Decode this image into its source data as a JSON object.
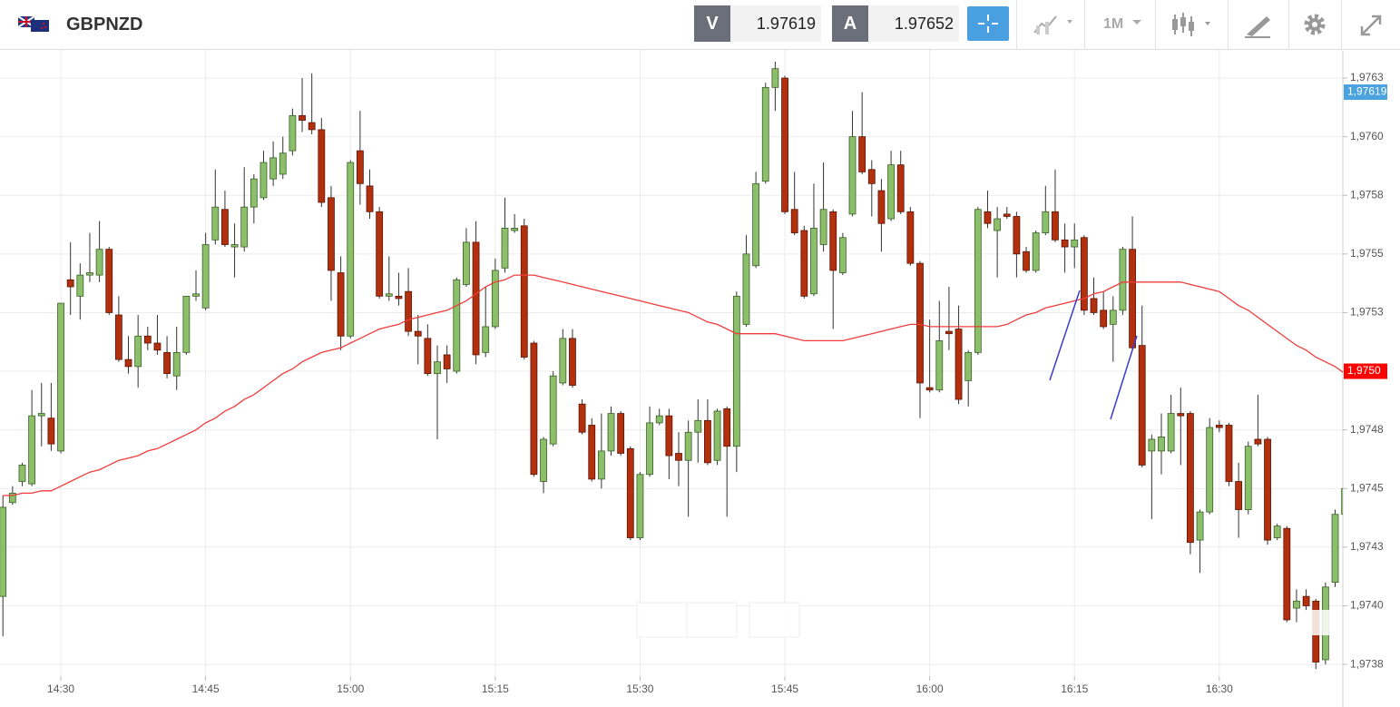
{
  "header": {
    "symbol": "GBPNZD",
    "bid_label": "V",
    "bid": 1.97619,
    "ask_label": "A",
    "ask": 1.97652,
    "timeframe": "1M"
  },
  "chart_data": {
    "type": "candlestick",
    "categories": [
      null,
      null,
      null,
      null,
      null,
      null,
      "14:30",
      null,
      null,
      null,
      null,
      null,
      null,
      null,
      null,
      null,
      null,
      null,
      null,
      null,
      null,
      "14:45",
      null,
      null,
      null,
      null,
      null,
      null,
      null,
      null,
      null,
      null,
      null,
      null,
      null,
      null,
      "15:00",
      null,
      null,
      null,
      null,
      null,
      null,
      null,
      null,
      null,
      null,
      null,
      null,
      null,
      null,
      "15:15",
      null,
      null,
      null,
      null,
      null,
      null,
      null,
      null,
      null,
      null,
      null,
      null,
      null,
      null,
      "15:30",
      null,
      null,
      null,
      null,
      null,
      null,
      null,
      null,
      null,
      null,
      null,
      null,
      null,
      null,
      "15:45",
      null,
      null,
      null,
      null,
      null,
      null,
      null,
      null,
      null,
      null,
      null,
      null,
      null,
      null,
      "16:00",
      null,
      null,
      null,
      null,
      null,
      null,
      null,
      null,
      null,
      null,
      null,
      null,
      null,
      null,
      "16:15",
      null,
      null,
      null,
      null,
      null,
      null,
      null,
      null,
      null,
      null,
      null,
      null,
      null,
      null,
      "16:30",
      null,
      null,
      null,
      null,
      null,
      null,
      null,
      null,
      null,
      null,
      null,
      null,
      null
    ],
    "open": [
      1.97404,
      1.97444,
      1.97453,
      1.97452,
      1.97481,
      1.9748,
      1.97466,
      1.97539,
      1.97532,
      1.97541,
      1.97541,
      1.97552,
      1.97524,
      1.97505,
      1.97502,
      1.97515,
      1.97512,
      1.97508,
      1.97498,
      1.97508,
      1.97532,
      1.97527,
      1.97556,
      1.97569,
      1.97553,
      1.97553,
      1.9757,
      1.97574,
      1.97582,
      1.97584,
      1.97594,
      1.97609,
      1.97606,
      1.97603,
      1.97574,
      1.97542,
      1.97515,
      1.97594,
      1.97579,
      1.97568,
      1.97532,
      1.97532,
      1.97534,
      1.97517,
      1.97514,
      1.97499,
      1.97507,
      1.975,
      1.97537,
      1.97555,
      1.97508,
      1.97519,
      1.97544,
      1.9756,
      1.97562,
      1.97512,
      1.97453,
      1.97469,
      1.97495,
      1.97514,
      1.97486,
      1.97477,
      1.97454,
      1.97466,
      1.97482,
      1.97467,
      1.97429,
      1.97456,
      1.97478,
      1.97481,
      1.97465,
      1.97462,
      1.97474,
      1.97479,
      1.97462,
      1.97484,
      1.97468,
      1.9752,
      1.97545,
      1.97581,
      1.97621,
      1.97625,
      1.97569,
      1.9756,
      1.97533,
      1.97554,
      1.97568,
      1.97542,
      1.97567,
      1.976,
      1.97586,
      1.97577,
      1.97565,
      1.97588,
      1.97568,
      1.97546,
      1.97493,
      1.97492,
      1.97517,
      1.97518,
      1.97496,
      1.97508,
      1.97568,
      1.9756,
      1.97567,
      1.97566,
      1.97551,
      1.97543,
      1.97559,
      1.97568,
      1.97556,
      1.97553,
      1.97557,
      1.97531,
      1.97526,
      1.9752,
      1.97526,
      1.97552,
      1.97511,
      1.97466,
      1.97466,
      1.97466,
      1.97482,
      1.97482,
      1.97428,
      1.9744,
      1.97477,
      1.97477,
      1.97453,
      1.97441,
      1.97471,
      1.97471,
      1.97429,
      1.97433,
      1.97399,
      1.97404,
      1.97402,
      1.97377,
      1.9741,
      1.97439
    ],
    "high": [
      1.97447,
      1.97451,
      1.97461,
      1.97492,
      1.97495,
      1.97495,
      1.97529,
      1.97555,
      1.97546,
      1.97559,
      1.97564,
      1.97553,
      1.97532,
      1.97515,
      1.97524,
      1.97519,
      1.97524,
      1.97515,
      1.97519,
      1.97532,
      1.97543,
      1.97559,
      1.97586,
      1.97577,
      1.97563,
      1.97587,
      1.97584,
      1.97594,
      1.97598,
      1.976,
      1.97612,
      1.97625,
      1.97627,
      1.97608,
      1.97579,
      1.97549,
      1.9759,
      1.97611,
      1.97586,
      1.9757,
      1.97549,
      1.97542,
      1.97544,
      1.97524,
      1.9752,
      1.97511,
      1.97511,
      1.9754,
      1.97561,
      1.97564,
      1.97536,
      1.97548,
      1.97574,
      1.97567,
      1.97565,
      1.97513,
      1.97472,
      1.975,
      1.97518,
      1.97518,
      1.97488,
      1.9748,
      1.97482,
      1.97485,
      1.97483,
      1.97468,
      1.97457,
      1.97485,
      1.97484,
      1.97484,
      1.97474,
      1.97479,
      1.97488,
      1.97488,
      1.97484,
      1.97485,
      1.97534,
      1.97558,
      1.97585,
      1.97623,
      1.97632,
      1.97626,
      1.97585,
      1.97562,
      1.9758,
      1.97589,
      1.97569,
      1.97559,
      1.97611,
      1.97619,
      1.9759,
      1.97582,
      1.97594,
      1.97594,
      1.9757,
      1.97547,
      1.97522,
      1.9753,
      1.97536,
      1.97528,
      1.97509,
      1.9757,
      1.97577,
      1.9757,
      1.9757,
      1.97568,
      1.97553,
      1.9756,
      1.97579,
      1.97586,
      1.97563,
      1.97563,
      1.97558,
      1.9754,
      1.97534,
      1.97532,
      1.97553,
      1.97566,
      1.97528,
      1.97473,
      1.97482,
      1.9749,
      1.97493,
      1.97483,
      1.97441,
      1.9748,
      1.97479,
      1.97478,
      1.97461,
      1.9747,
      1.9749,
      1.97472,
      1.97435,
      1.97434,
      1.97407,
      1.97407,
      1.97403,
      1.9741,
      1.97441,
      1.97459
    ],
    "low": [
      1.97387,
      1.97443,
      1.97451,
      1.97451,
      1.97468,
      1.97466,
      1.97465,
      1.97524,
      1.97522,
      1.97538,
      1.97538,
      1.97524,
      1.97504,
      1.97499,
      1.97493,
      1.97509,
      1.97507,
      1.97497,
      1.97492,
      1.97507,
      1.9753,
      1.97526,
      1.97554,
      1.97553,
      1.9754,
      1.97551,
      1.97563,
      1.97573,
      1.97579,
      1.97582,
      1.97592,
      1.97602,
      1.97601,
      1.9757,
      1.9753,
      1.97509,
      1.97514,
      1.97571,
      1.97565,
      1.97531,
      1.9753,
      1.97528,
      1.97515,
      1.97503,
      1.97498,
      1.97471,
      1.97495,
      1.97499,
      1.97536,
      1.97503,
      1.97506,
      1.97518,
      1.97542,
      1.97559,
      1.97505,
      1.97455,
      1.97448,
      1.97468,
      1.97494,
      1.97493,
      1.97473,
      1.97453,
      1.9745,
      1.97464,
      1.97464,
      1.97428,
      1.97428,
      1.97455,
      1.97477,
      1.97454,
      1.97451,
      1.97438,
      1.97461,
      1.9746,
      1.9746,
      1.97438,
      1.97457,
      1.97519,
      1.97544,
      1.9758,
      1.97611,
      1.97567,
      1.97558,
      1.97531,
      1.97532,
      1.97551,
      1.97518,
      1.97541,
      1.97566,
      1.97584,
      1.97566,
      1.97551,
      1.97564,
      1.97567,
      1.97545,
      1.9748,
      1.97491,
      1.97491,
      1.97509,
      1.97486,
      1.97485,
      1.97507,
      1.97561,
      1.9754,
      1.97565,
      1.9754,
      1.97542,
      1.97542,
      1.97558,
      1.97555,
      1.97542,
      1.97544,
      1.97524,
      1.97524,
      1.97518,
      1.97504,
      1.97524,
      1.97509,
      1.97459,
      1.97437,
      1.97456,
      1.97465,
      1.9746,
      1.97422,
      1.97414,
      1.97439,
      1.97474,
      1.97451,
      1.97429,
      1.97439,
      1.97468,
      1.97426,
      1.97428,
      1.97393,
      1.97393,
      1.97398,
      1.97373,
      1.97375,
      1.97408,
      1.97437
    ],
    "close": [
      1.97442,
      1.97448,
      1.9746,
      1.97481,
      1.97482,
      1.97469,
      1.97529,
      1.97536,
      1.97541,
      1.97542,
      1.97552,
      1.97525,
      1.97505,
      1.97502,
      1.97515,
      1.97512,
      1.97509,
      1.97499,
      1.97508,
      1.97532,
      1.97533,
      1.97554,
      1.9757,
      1.97554,
      1.97554,
      1.9757,
      1.97582,
      1.97589,
      1.97591,
      1.97593,
      1.97609,
      1.97607,
      1.97603,
      1.97572,
      1.97543,
      1.97515,
      1.97589,
      1.9758,
      1.97568,
      1.97532,
      1.97533,
      1.97531,
      1.97517,
      1.97515,
      1.97499,
      1.97504,
      1.97501,
      1.97539,
      1.97555,
      1.97507,
      1.97519,
      1.97543,
      1.97561,
      1.97561,
      1.97506,
      1.97456,
      1.97471,
      1.97498,
      1.97514,
      1.97494,
      1.97474,
      1.97454,
      1.97466,
      1.97482,
      1.97465,
      1.97429,
      1.97456,
      1.97478,
      1.97481,
      1.97464,
      1.97462,
      1.97474,
      1.97479,
      1.97461,
      1.97483,
      1.97468,
      1.97532,
      1.9755,
      1.9758,
      1.97621,
      1.97629,
      1.97568,
      1.97559,
      1.97532,
      1.97561,
      1.97569,
      1.97543,
      1.97557,
      1.976,
      1.97585,
      1.9758,
      1.97563,
      1.97588,
      1.97568,
      1.97546,
      1.97495,
      1.97492,
      1.97513,
      1.97516,
      1.97488,
      1.97508,
      1.97569,
      1.97563,
      1.97565,
      1.97566,
      1.9755,
      1.97543,
      1.97559,
      1.97568,
      1.97556,
      1.97553,
      1.97556,
      1.97526,
      1.97525,
      1.97519,
      1.97526,
      1.97552,
      1.9751,
      1.9746,
      1.97471,
      1.97472,
      1.97482,
      1.97481,
      1.97427,
      1.9744,
      1.97476,
      1.97476,
      1.97453,
      1.97441,
      1.97468,
      1.97469,
      1.97428,
      1.97434,
      1.97394,
      1.97402,
      1.974,
      1.97376,
      1.97408,
      1.97439,
      1.9745
    ],
    "up_color": "#8cbf6a",
    "down_color": "#b3300f",
    "moving_average": {
      "color": "#f03c3c",
      "values": [
        1.97447,
        1.97447,
        1.97448,
        1.97448,
        1.97449,
        1.97449,
        1.97451,
        1.97453,
        1.97455,
        1.97457,
        1.97458,
        1.9746,
        1.97462,
        1.97463,
        1.97464,
        1.97466,
        1.97467,
        1.97469,
        1.97471,
        1.97473,
        1.97475,
        1.97478,
        1.9748,
        1.97483,
        1.97485,
        1.97488,
        1.9749,
        1.97493,
        1.97496,
        1.97499,
        1.97501,
        1.97504,
        1.97506,
        1.97508,
        1.97509,
        1.9751,
        1.97512,
        1.97514,
        1.97516,
        1.97518,
        1.97519,
        1.9752,
        1.97522,
        1.97523,
        1.97524,
        1.97525,
        1.97526,
        1.97528,
        1.9753,
        1.97533,
        1.97536,
        1.97538,
        1.97539,
        1.97541,
        1.97541,
        1.97541,
        1.9754,
        1.97539,
        1.97538,
        1.97537,
        1.97536,
        1.97535,
        1.97534,
        1.97533,
        1.97532,
        1.97531,
        1.9753,
        1.97529,
        1.97528,
        1.97527,
        1.97526,
        1.97525,
        1.97523,
        1.97521,
        1.9752,
        1.97518,
        1.97516,
        1.97516,
        1.97516,
        1.97516,
        1.97516,
        1.97515,
        1.97514,
        1.97513,
        1.97513,
        1.97513,
        1.97513,
        1.97513,
        1.97514,
        1.97515,
        1.97516,
        1.97517,
        1.97518,
        1.97519,
        1.9752,
        1.9752,
        1.97519,
        1.97519,
        1.97519,
        1.97519,
        1.97519,
        1.97519,
        1.97519,
        1.97519,
        1.9752,
        1.97522,
        1.97524,
        1.97525,
        1.97527,
        1.97528,
        1.97529,
        1.9753,
        1.97531,
        1.97533,
        1.97534,
        1.97536,
        1.97538,
        1.97538,
        1.97538,
        1.97538,
        1.97538,
        1.97538,
        1.97538,
        1.97537,
        1.97536,
        1.97535,
        1.97534,
        1.97531,
        1.97528,
        1.97526,
        1.97523,
        1.9752,
        1.97517,
        1.97514,
        1.97511,
        1.97509,
        1.97506,
        1.97504,
        1.97502,
        1.97499
      ]
    },
    "ylim": [
      1.9737,
      1.97637
    ],
    "yticks": [
      {
        "value": 1.97625,
        "label": "1,9763"
      },
      {
        "value": 1.976,
        "label": "1,9760"
      },
      {
        "value": 1.97575,
        "label": "1,9758"
      },
      {
        "value": 1.9755,
        "label": "1,9755"
      },
      {
        "value": 1.97525,
        "label": "1,9753"
      },
      {
        "value": 1.975,
        "label": "1,9750"
      },
      {
        "value": 1.97475,
        "label": "1,9748"
      },
      {
        "value": 1.9745,
        "label": "1,9745"
      },
      {
        "value": 1.97425,
        "label": "1,9743"
      },
      {
        "value": 1.974,
        "label": "1,9740"
      },
      {
        "value": 1.97375,
        "label": "1,9738"
      }
    ],
    "price_labels": [
      {
        "value": 1.97619,
        "label": "1,97619",
        "color": "#4aa3df"
      },
      {
        "value": 1.975,
        "label": "1,9750",
        "color": "#ff0000"
      }
    ],
    "grid": true
  }
}
